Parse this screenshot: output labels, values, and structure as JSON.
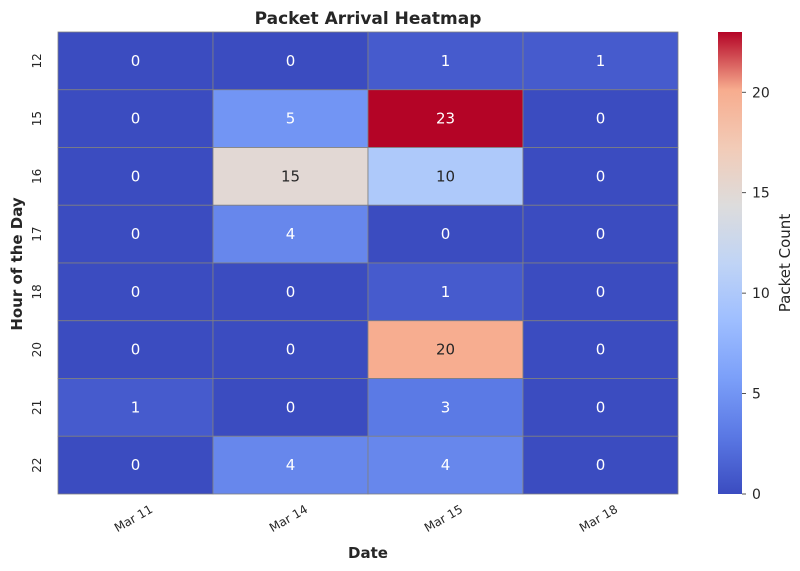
{
  "chart_data": {
    "type": "heatmap",
    "title": "Packet Arrival Heatmap",
    "xlabel": "Date",
    "ylabel": "Hour of the Day",
    "x_categories": [
      "Mar 11",
      "Mar 14",
      "Mar 15",
      "Mar 18"
    ],
    "y_categories": [
      "12",
      "15",
      "16",
      "17",
      "18",
      "20",
      "21",
      "22"
    ],
    "values": [
      [
        0,
        0,
        1,
        1
      ],
      [
        0,
        5,
        23,
        0
      ],
      [
        0,
        15,
        10,
        0
      ],
      [
        0,
        4,
        0,
        0
      ],
      [
        0,
        0,
        1,
        0
      ],
      [
        0,
        0,
        20,
        0
      ],
      [
        1,
        0,
        3,
        0
      ],
      [
        0,
        4,
        4,
        0
      ]
    ],
    "colorbar": {
      "label": "Packet Count",
      "range": [
        0,
        23
      ],
      "ticks": [
        "0",
        "5",
        "10",
        "15",
        "20"
      ],
      "colormap": "coolwarm"
    },
    "grid_color": "#808080"
  }
}
